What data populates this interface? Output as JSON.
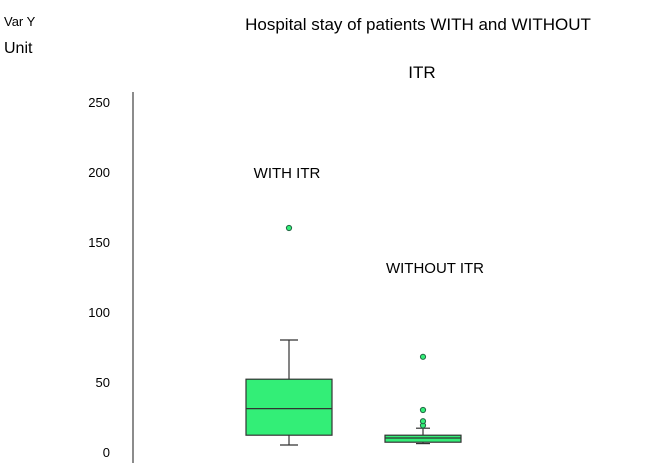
{
  "chart_data": {
    "type": "boxplot",
    "title_line1": "Hospital stay of patients WITH and WITHOUT",
    "title_line2": "ITR",
    "ylabel_line1": "Var Y",
    "ylabel_line2": "Unit",
    "ylim": [
      0,
      250
    ],
    "yticks": [
      0,
      50,
      100,
      150,
      200,
      250
    ],
    "grid": false,
    "box_color": "#33ee77",
    "groups": [
      {
        "label": "WITH ITR",
        "min": 5,
        "q1": 12,
        "median": 31,
        "q3": 52,
        "max": 80,
        "outliers": [
          160
        ]
      },
      {
        "label": "WITHOUT ITR",
        "min": 6,
        "q1": 7,
        "median": 10,
        "q3": 12,
        "max": 17,
        "outliers": [
          19,
          22,
          30,
          68
        ]
      }
    ]
  }
}
